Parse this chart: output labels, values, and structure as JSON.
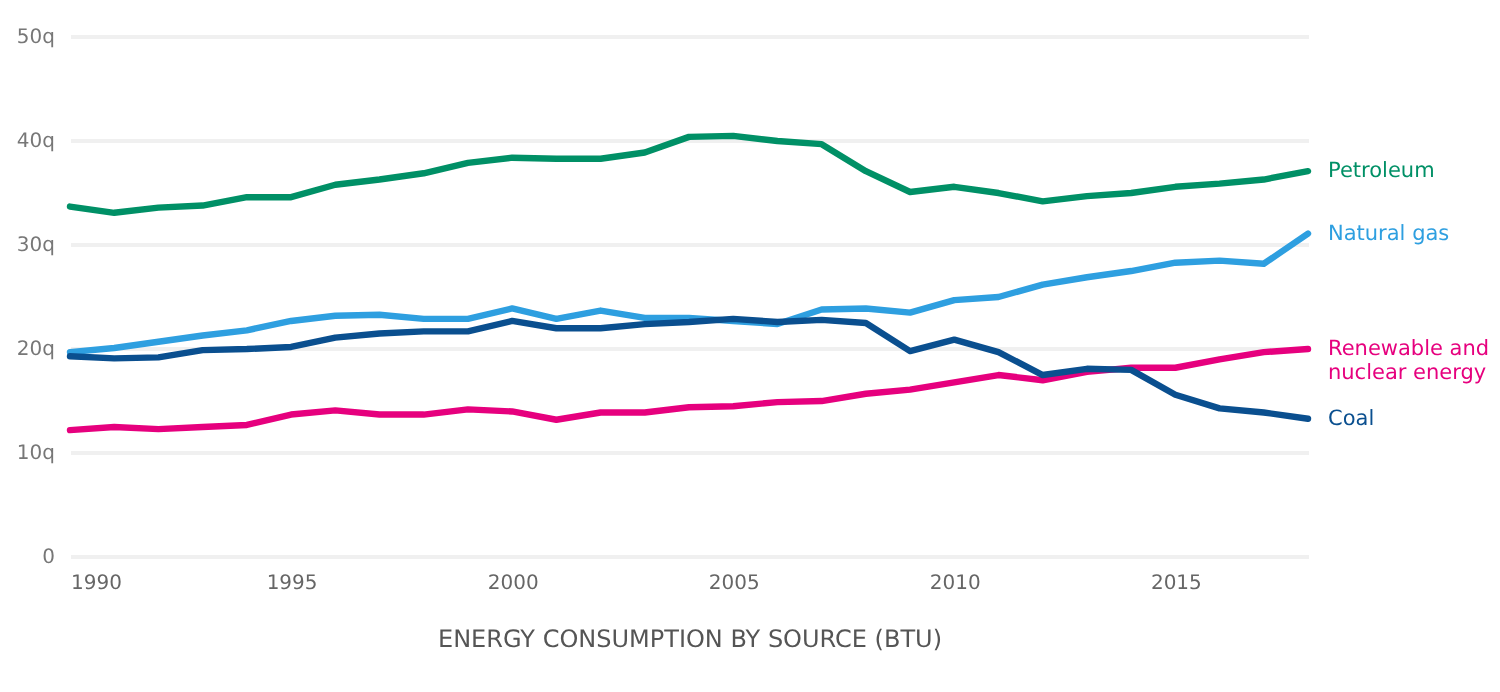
{
  "chart_data": {
    "type": "line",
    "xlabel": "ENERGY CONSUMPTION BY SOURCE (BTU)",
    "x": [
      1990,
      1991,
      1992,
      1993,
      1994,
      1995,
      1996,
      1997,
      1998,
      1999,
      2000,
      2001,
      2002,
      2003,
      2004,
      2005,
      2006,
      2007,
      2008,
      2009,
      2010,
      2011,
      2012,
      2013,
      2014,
      2015,
      2016,
      2017,
      2018
    ],
    "series": [
      {
        "name": "Petroleum",
        "color": "#009066",
        "values": [
          33.6,
          33.0,
          33.5,
          33.7,
          34.5,
          34.5,
          35.7,
          36.2,
          36.8,
          37.8,
          38.3,
          38.2,
          38.2,
          38.8,
          40.3,
          40.4,
          39.9,
          39.6,
          37.0,
          35.0,
          35.5,
          34.9,
          34.1,
          34.6,
          34.9,
          35.5,
          35.8,
          36.2,
          37.0
        ]
      },
      {
        "name": "Natural gas",
        "color": "#2e9fe0",
        "values": [
          19.6,
          20.0,
          20.6,
          21.2,
          21.7,
          22.6,
          23.1,
          23.2,
          22.8,
          22.8,
          23.8,
          22.8,
          23.6,
          22.9,
          22.9,
          22.6,
          22.3,
          23.7,
          23.8,
          23.4,
          24.6,
          24.9,
          26.1,
          26.8,
          27.4,
          28.2,
          28.4,
          28.1,
          31.0
        ]
      },
      {
        "name": "Renewable and nuclear energy",
        "color": "#e6007e",
        "values": [
          12.1,
          12.4,
          12.2,
          12.4,
          12.6,
          13.6,
          14.0,
          13.6,
          13.6,
          14.1,
          13.9,
          13.1,
          13.8,
          13.8,
          14.3,
          14.4,
          14.8,
          14.9,
          15.6,
          16.0,
          16.7,
          17.4,
          16.9,
          17.7,
          18.1,
          18.1,
          18.9,
          19.6,
          19.9
        ]
      },
      {
        "name": "Coal",
        "color": "#0a4f8f",
        "values": [
          19.2,
          19.0,
          19.1,
          19.8,
          19.9,
          20.1,
          21.0,
          21.4,
          21.6,
          21.6,
          22.6,
          21.9,
          21.9,
          22.3,
          22.5,
          22.8,
          22.5,
          22.7,
          22.4,
          19.7,
          20.8,
          19.6,
          17.4,
          18.0,
          17.9,
          15.5,
          14.2,
          13.8,
          13.2
        ]
      }
    ],
    "xlim": [
      1990,
      2018
    ],
    "xticks": [
      1990,
      1995,
      2000,
      2005,
      2010,
      2015
    ],
    "ylim": [
      0,
      50
    ],
    "yticks": [
      0,
      {
        "value": 10,
        "label": "10q"
      },
      {
        "value": 20,
        "label": "20q"
      },
      {
        "value": 30,
        "label": "30q"
      },
      {
        "value": 40,
        "label": "40q"
      },
      {
        "value": 50,
        "label": "50q"
      }
    ],
    "grid": "y",
    "legend": false,
    "marker": "none",
    "line_style": "solid"
  }
}
